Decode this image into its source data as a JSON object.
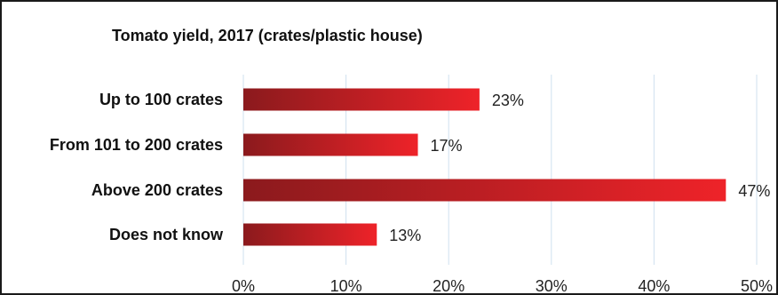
{
  "chart_data": {
    "type": "bar",
    "orientation": "horizontal",
    "title": "Tomato yield, 2017 (crates/plastic house)",
    "categories": [
      "Up to 100 crates",
      "From 101 to 200 crates",
      "Above 200 crates",
      "Does not know"
    ],
    "values": [
      23,
      17,
      47,
      13
    ],
    "data_labels": [
      "23%",
      "17%",
      "47%",
      "13%"
    ],
    "xlim": [
      0,
      50
    ],
    "x_ticks": [
      0,
      10,
      20,
      30,
      40,
      50
    ],
    "x_tick_labels": [
      "0%",
      "10%",
      "20%",
      "30%",
      "40%",
      "50%"
    ],
    "grid": true,
    "bar_color_start": "#8b1a1d",
    "bar_color_end": "#ee2329",
    "grid_color": "#cfe0ef"
  }
}
